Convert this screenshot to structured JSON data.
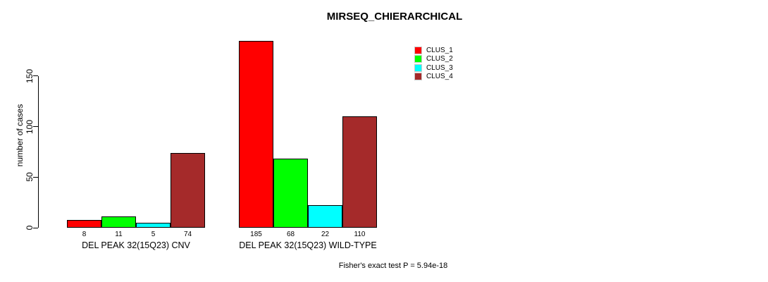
{
  "title": "MIRSEQ_CHIERARCHICAL",
  "ylabel": "number of cases",
  "footer": "Fisher's exact test P = 5.94e-18",
  "legend": {
    "items": [
      {
        "label": "CLUS_1",
        "color": "#FF0000"
      },
      {
        "label": "CLUS_2",
        "color": "#00FF00"
      },
      {
        "label": "CLUS_3",
        "color": "#00FFFF"
      },
      {
        "label": "CLUS_4",
        "color": "#A52A2A"
      }
    ]
  },
  "chart_data": {
    "type": "bar",
    "title": "MIRSEQ_CHIERARCHICAL",
    "xlabel": "",
    "ylabel": "number of cases",
    "categories": [
      "DEL PEAK 32(15Q23) CNV",
      "DEL PEAK 32(15Q23) WILD-TYPE"
    ],
    "series": [
      {
        "name": "CLUS_1",
        "color": "#FF0000",
        "values": [
          8,
          185
        ]
      },
      {
        "name": "CLUS_2",
        "color": "#00FF00",
        "values": [
          11,
          68
        ]
      },
      {
        "name": "CLUS_3",
        "color": "#00FFFF",
        "values": [
          5,
          22
        ]
      },
      {
        "name": "CLUS_4",
        "color": "#A52A2A",
        "values": [
          74,
          110
        ]
      }
    ],
    "bar_value_labels": [
      [
        8,
        11,
        5,
        74
      ],
      [
        185,
        68,
        22,
        110
      ]
    ],
    "yticks": [
      0,
      50,
      100,
      150
    ],
    "ylim": [
      0,
      190
    ],
    "grid": false,
    "legend_position": "top-right",
    "annotation": "Fisher's exact test P = 5.94e-18"
  }
}
